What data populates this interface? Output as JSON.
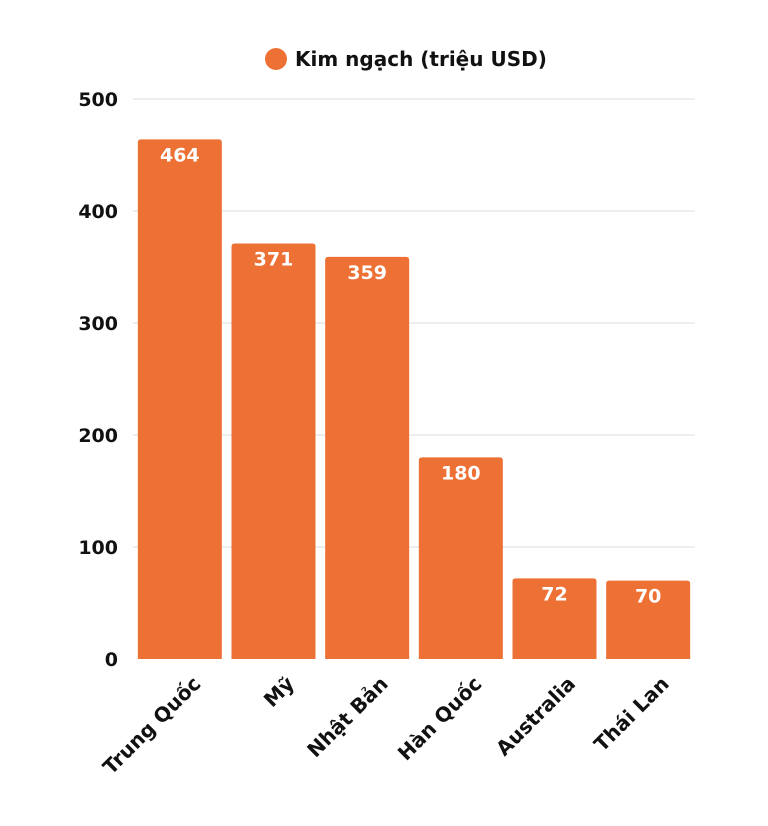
{
  "chart_data": {
    "type": "bar",
    "title": "",
    "xlabel": "",
    "ylabel": "",
    "categories": [
      "Trung Quốc",
      "Mỹ",
      "Nhật Bản",
      "Hàn Quốc",
      "Australia",
      "Thái Lan"
    ],
    "series": [
      {
        "name": "Kim ngạch (triệu USD)",
        "values": [
          464,
          371,
          359,
          180,
          72,
          70
        ],
        "color": "#ED7135"
      }
    ],
    "ylim": [
      0,
      500
    ],
    "yticks": [
      0,
      100,
      200,
      300,
      400,
      500
    ],
    "grid": true,
    "legend_position": "top-center",
    "data_labels": true
  }
}
